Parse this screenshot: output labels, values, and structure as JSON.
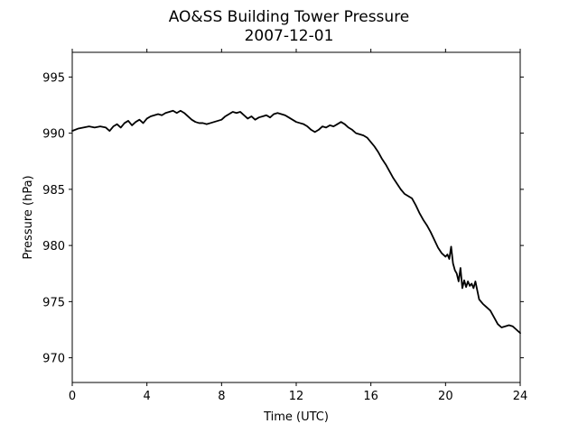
{
  "chart_data": {
    "type": "line",
    "title": "AO&SS Building Tower Pressure",
    "subtitle": "2007-12-01",
    "xlabel": "Time (UTC)",
    "ylabel": "Pressure (hPa)",
    "xlim": [
      0,
      24
    ],
    "ylim": [
      967.8,
      997.2
    ],
    "x_ticks": [
      0,
      4,
      8,
      12,
      16,
      20,
      24
    ],
    "y_ticks": [
      970,
      975,
      980,
      985,
      990,
      995
    ],
    "grid": false,
    "line_color": "#000000",
    "series": [
      {
        "x": [
          0,
          0.3,
          0.6,
          0.9,
          1.2,
          1.5,
          1.8,
          2.0,
          2.2,
          2.4,
          2.6,
          2.8,
          3.0,
          3.2,
          3.4,
          3.6,
          3.8,
          4.0,
          4.2,
          4.4,
          4.6,
          4.8,
          5.0,
          5.2,
          5.4,
          5.6,
          5.8,
          6.0,
          6.2,
          6.4,
          6.6,
          6.8,
          7.0,
          7.2,
          7.4,
          7.6,
          7.8,
          8.0,
          8.2,
          8.4,
          8.6,
          8.8,
          9.0,
          9.2,
          9.4,
          9.6,
          9.8,
          10.0,
          10.2,
          10.4,
          10.6,
          10.8,
          11.0,
          11.2,
          11.4,
          11.6,
          11.8,
          12.0,
          12.2,
          12.4,
          12.6,
          12.8,
          13.0,
          13.2,
          13.4,
          13.6,
          13.8,
          14.0,
          14.2,
          14.4,
          14.6,
          14.8,
          15.0,
          15.2,
          15.4,
          15.6,
          15.8,
          16.0,
          16.2,
          16.4,
          16.6,
          16.8,
          17.0,
          17.2,
          17.4,
          17.6,
          17.8,
          18.0,
          18.2,
          18.4,
          18.6,
          18.8,
          19.0,
          19.2,
          19.4,
          19.6,
          19.8,
          20.0,
          20.1,
          20.2,
          20.3,
          20.4,
          20.5,
          20.6,
          20.7,
          20.8,
          20.9,
          21.0,
          21.1,
          21.2,
          21.3,
          21.4,
          21.5,
          21.6,
          21.7,
          21.8,
          22.0,
          22.2,
          22.4,
          22.6,
          22.8,
          23.0,
          23.2,
          23.4,
          23.6,
          23.8,
          24.0
        ],
        "y": [
          990.2,
          990.4,
          990.5,
          990.6,
          990.5,
          990.6,
          990.5,
          990.2,
          990.6,
          990.8,
          990.5,
          990.9,
          991.1,
          990.7,
          991.0,
          991.2,
          990.9,
          991.3,
          991.5,
          991.6,
          991.7,
          991.6,
          991.8,
          991.9,
          992.0,
          991.8,
          992.0,
          991.8,
          991.5,
          991.2,
          991.0,
          990.9,
          990.9,
          990.8,
          990.9,
          991.0,
          991.1,
          991.2,
          991.5,
          991.7,
          991.9,
          991.8,
          991.9,
          991.6,
          991.3,
          991.5,
          991.2,
          991.4,
          991.5,
          991.6,
          991.4,
          991.7,
          991.8,
          991.7,
          991.6,
          991.4,
          991.2,
          991.0,
          990.9,
          990.8,
          990.6,
          990.3,
          990.1,
          990.3,
          990.6,
          990.5,
          990.7,
          990.6,
          990.8,
          991.0,
          990.8,
          990.5,
          990.3,
          990.0,
          989.9,
          989.8,
          989.6,
          989.2,
          988.8,
          988.3,
          987.7,
          987.2,
          986.6,
          986.0,
          985.5,
          985.0,
          984.6,
          984.4,
          984.2,
          983.6,
          982.9,
          982.3,
          981.8,
          981.2,
          980.5,
          979.8,
          979.3,
          979.0,
          979.2,
          978.8,
          979.9,
          978.4,
          977.8,
          977.5,
          976.8,
          978.0,
          976.2,
          976.9,
          976.3,
          976.8,
          976.4,
          976.6,
          976.2,
          976.8,
          976.0,
          975.2,
          974.8,
          974.5,
          974.2,
          973.6,
          973.0,
          972.7,
          972.8,
          972.9,
          972.8,
          972.5,
          972.2
        ]
      }
    ]
  }
}
